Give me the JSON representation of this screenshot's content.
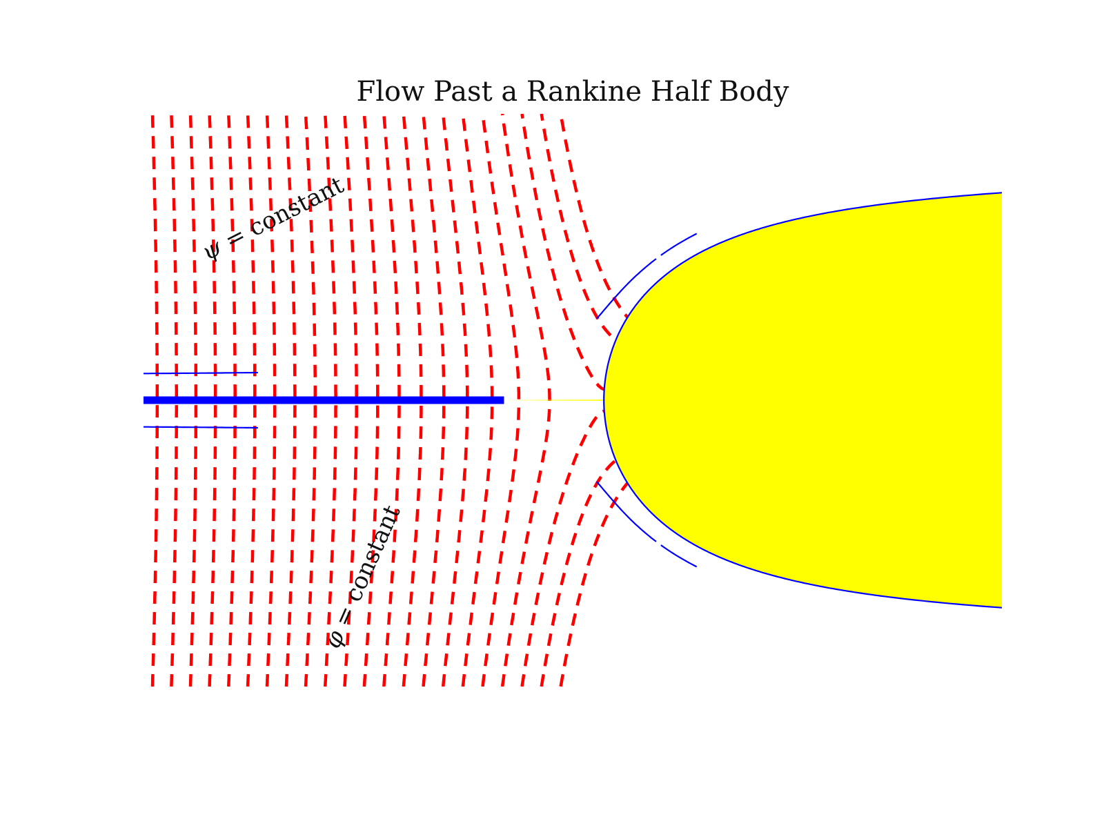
{
  "title": "Flow Past a Rankine Half Body",
  "annotations": {
    "psi": {
      "symbol": "ψ",
      "rest": " = constant"
    },
    "phi": {
      "symbol": "φ",
      "rest": " = constant"
    }
  },
  "chart_data": {
    "type": "contour",
    "title": "Flow Past a Rankine Half Body",
    "xlabel": "",
    "ylabel": "",
    "xlim": [
      -1.5,
      1.0
    ],
    "ylim": [
      -0.6,
      0.6
    ],
    "axes_visible": false,
    "grid": false,
    "source_strength_half_width": 0.5,
    "series": [
      {
        "kind": "streamlines",
        "style": "solid",
        "color": "#0000ff",
        "levels": [
          -0.55,
          -0.5,
          -0.45,
          -0.4,
          -0.35,
          -0.3,
          -0.25,
          -0.2,
          -0.15,
          -0.1,
          -0.05,
          0.05,
          0.1,
          0.15,
          0.2,
          0.25,
          0.3,
          0.35,
          0.4,
          0.45,
          0.5,
          0.55
        ]
      },
      {
        "kind": "equipotentials",
        "style": "dashed",
        "color": "#ff0000",
        "levels": [
          -1.45,
          -1.4,
          -1.35,
          -1.3,
          -1.25,
          -1.2,
          -1.15,
          -1.1,
          -1.05,
          -1.0,
          -0.95,
          -0.9,
          -0.85,
          -0.8,
          -0.75,
          -0.7,
          -0.65,
          -0.6,
          -0.55,
          -0.5,
          -0.45,
          -0.4,
          -0.35
        ]
      }
    ],
    "body": {
      "fill": "#ffff00",
      "stagnation_x": -0.45
    }
  },
  "colors": {
    "streamline": "#0000ff",
    "equipotential": "#ff0000",
    "body_fill": "#ffff00",
    "background": "#ffffff"
  }
}
